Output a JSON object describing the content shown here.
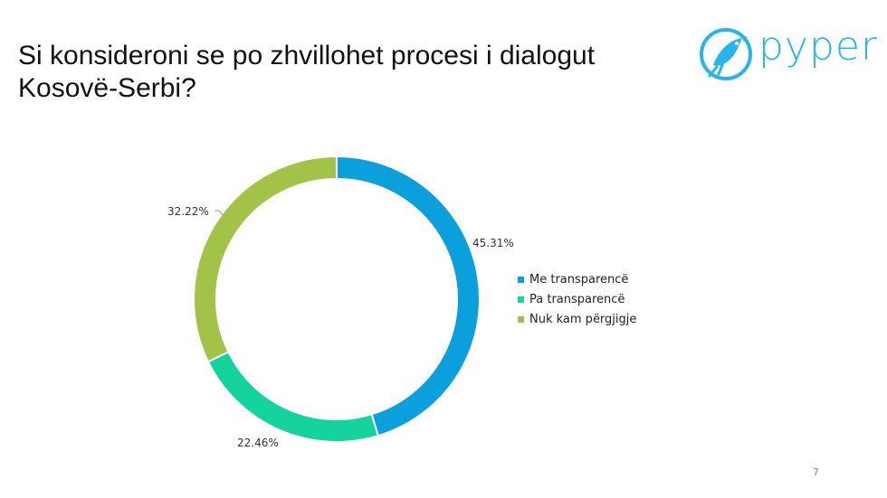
{
  "slide": {
    "title_line1": "Si konsideroni se po zhvillohet procesi i dialogut",
    "title_line2": "Kosovë-Serbi?",
    "page_number": "7"
  },
  "logo": {
    "text": "pyper",
    "color": "#27b5e8",
    "icon": "bird-logo-icon"
  },
  "chart_data": {
    "type": "pie",
    "donut": true,
    "categories": [
      "Me transparencë",
      "Pa transparencë",
      "Nuk kam përgjigje"
    ],
    "values": [
      45.31,
      22.46,
      32.22
    ],
    "value_labels": [
      "45.31%",
      "22.46%",
      "32.22%"
    ],
    "colors": [
      "#0ba0dc",
      "#15d39c",
      "#a2c347"
    ],
    "legend_position": "right"
  }
}
